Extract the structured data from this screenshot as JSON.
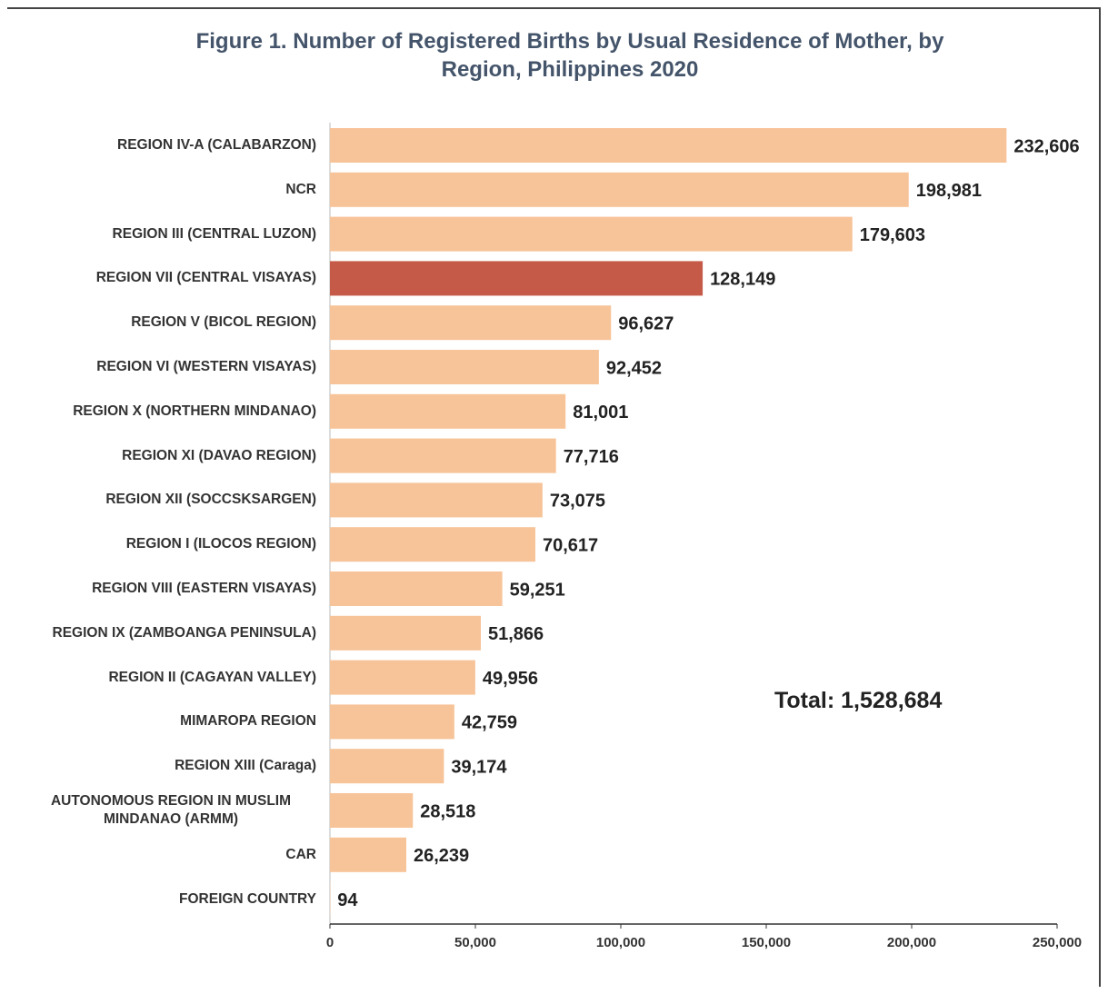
{
  "chart_data": {
    "type": "barh",
    "title": "Figure 1. Number of Registered Births by Usual Residence of Mother, by Region, Philippines 2020",
    "categories": [
      "REGION IV-A (CALABARZON)",
      "NCR",
      "REGION III (CENTRAL LUZON)",
      "REGION VII (CENTRAL VISAYAS)",
      "REGION V (BICOL REGION)",
      "REGION VI (WESTERN VISAYAS)",
      "REGION X (NORTHERN MINDANAO)",
      "REGION XI (DAVAO REGION)",
      "REGION XII (SOCCSKSARGEN)",
      "REGION I (ILOCOS REGION)",
      "REGION VIII (EASTERN VISAYAS)",
      "REGION IX (ZAMBOANGA PENINSULA)",
      "REGION II (CAGAYAN VALLEY)",
      "MIMAROPA REGION",
      "REGION XIII (Caraga)",
      "AUTONOMOUS REGION IN MUSLIM MINDANAO (ARMM)",
      "CAR",
      "FOREIGN COUNTRY"
    ],
    "values": [
      232606,
      198981,
      179603,
      128149,
      96627,
      92452,
      81001,
      77716,
      73075,
      70617,
      59251,
      51866,
      49956,
      42759,
      39174,
      28518,
      26239,
      94
    ],
    "value_labels": [
      "232,606",
      "198,981",
      "179,603",
      "128,149",
      "96,627",
      "92,452",
      "81,001",
      "77,716",
      "73,075",
      "70,617",
      "59,251",
      "51,866",
      "49,956",
      "42,759",
      "39,174",
      "28,518",
      "26,239",
      "94"
    ],
    "colors": [
      "#f7c398",
      "#f7c398",
      "#f7c398",
      "#c65a48",
      "#f7c398",
      "#f7c398",
      "#f7c398",
      "#f7c398",
      "#f7c398",
      "#f7c398",
      "#f7c398",
      "#f7c398",
      "#f7c398",
      "#f7c398",
      "#f7c398",
      "#f7c398",
      "#f7c398",
      "#f7c398"
    ],
    "xlim": [
      0,
      250000
    ],
    "xticks": [
      0,
      {
        "value": 50000,
        "label": "50,000"
      },
      {
        "value": 100000,
        "label": "100,000"
      },
      {
        "value": 150000,
        "label": "150,000"
      },
      {
        "value": 200000,
        "label": "200,000"
      },
      {
        "value": 250000,
        "label": "250,000"
      }
    ],
    "annotation": "Total: 1,528,684"
  }
}
